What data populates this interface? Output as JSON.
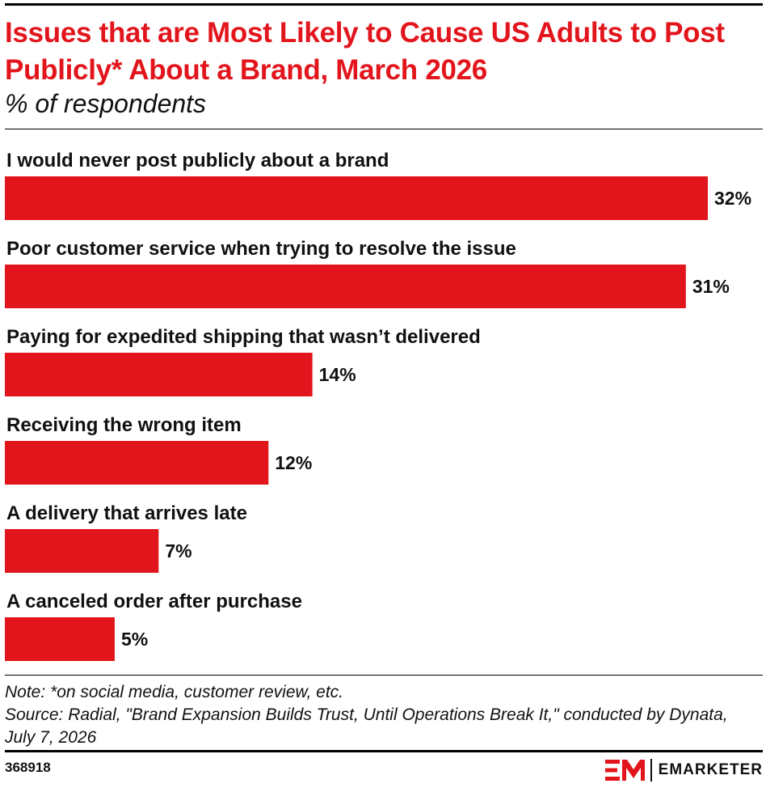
{
  "header": {
    "title": "Issues that are Most Likely to Cause US Adults to Post Publicly* About a Brand, March 2026",
    "subtitle": "% of respondents"
  },
  "chart_data": {
    "type": "bar",
    "orientation": "horizontal",
    "categories": [
      "I would never post publicly about a brand",
      "Poor customer service when trying to resolve the issue",
      "Paying for expedited shipping that wasn’t delivered",
      "Receiving the wrong item",
      "A delivery that arrives late",
      "A canceled order after purchase"
    ],
    "values": [
      32,
      31,
      14,
      12,
      7,
      5
    ],
    "value_labels": [
      "32%",
      "31%",
      "14%",
      "12%",
      "7%",
      "5%"
    ],
    "color": "#e3151c",
    "xlim": [
      0,
      32
    ],
    "grid": false,
    "legend": "none"
  },
  "footer": {
    "note": "Note: *on social media, customer review, etc.",
    "source": "Source: Radial, \"Brand Expansion Builds Trust, Until Operations Break It,\" conducted by Dynata, July 7, 2026",
    "chart_id": "368918",
    "brand": "EMARKETER"
  },
  "colors": {
    "accent": "#e3151c",
    "text": "#111111"
  },
  "icons": {
    "logo": "emarketer-em-logo-icon"
  }
}
